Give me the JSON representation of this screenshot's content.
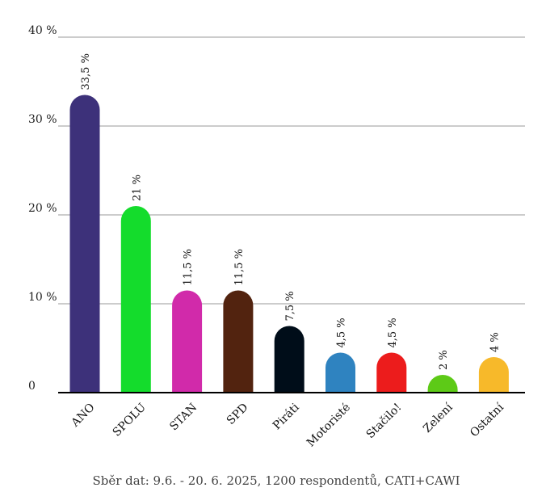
{
  "chart_data": {
    "type": "bar",
    "categories": [
      "ANO",
      "SPOLU",
      "STAN",
      "SPD",
      "Piráti",
      "Motoristé",
      "Stačilo!",
      "Zelení",
      "Ostatní"
    ],
    "values": [
      33.5,
      21,
      11.5,
      11.5,
      7.5,
      4.5,
      4.5,
      2,
      4
    ],
    "data_labels": [
      "33,5 %",
      "21 %",
      "11,5 %",
      "11,5 %",
      "7,5 %",
      "4,5 %",
      "4,5 %",
      "2 %",
      "4 %"
    ],
    "colors": [
      "#3d317a",
      "#14dc2c",
      "#d12aaa",
      "#52230f",
      "#000d19",
      "#2f83c0",
      "#ec1c1c",
      "#5dca17",
      "#f7b92a"
    ],
    "ylim": [
      0,
      40
    ],
    "yticks": [
      0,
      10,
      20,
      30,
      40
    ],
    "ytick_labels": [
      "0",
      "10 %",
      "20 %",
      "30 %",
      "40 %"
    ],
    "grid": true,
    "title": "",
    "xlabel": "",
    "ylabel": ""
  },
  "footer": {
    "text": "Sběr dat: 9.6. - 20. 6. 2025,  1200 respondentů, CATI+CAWI"
  }
}
